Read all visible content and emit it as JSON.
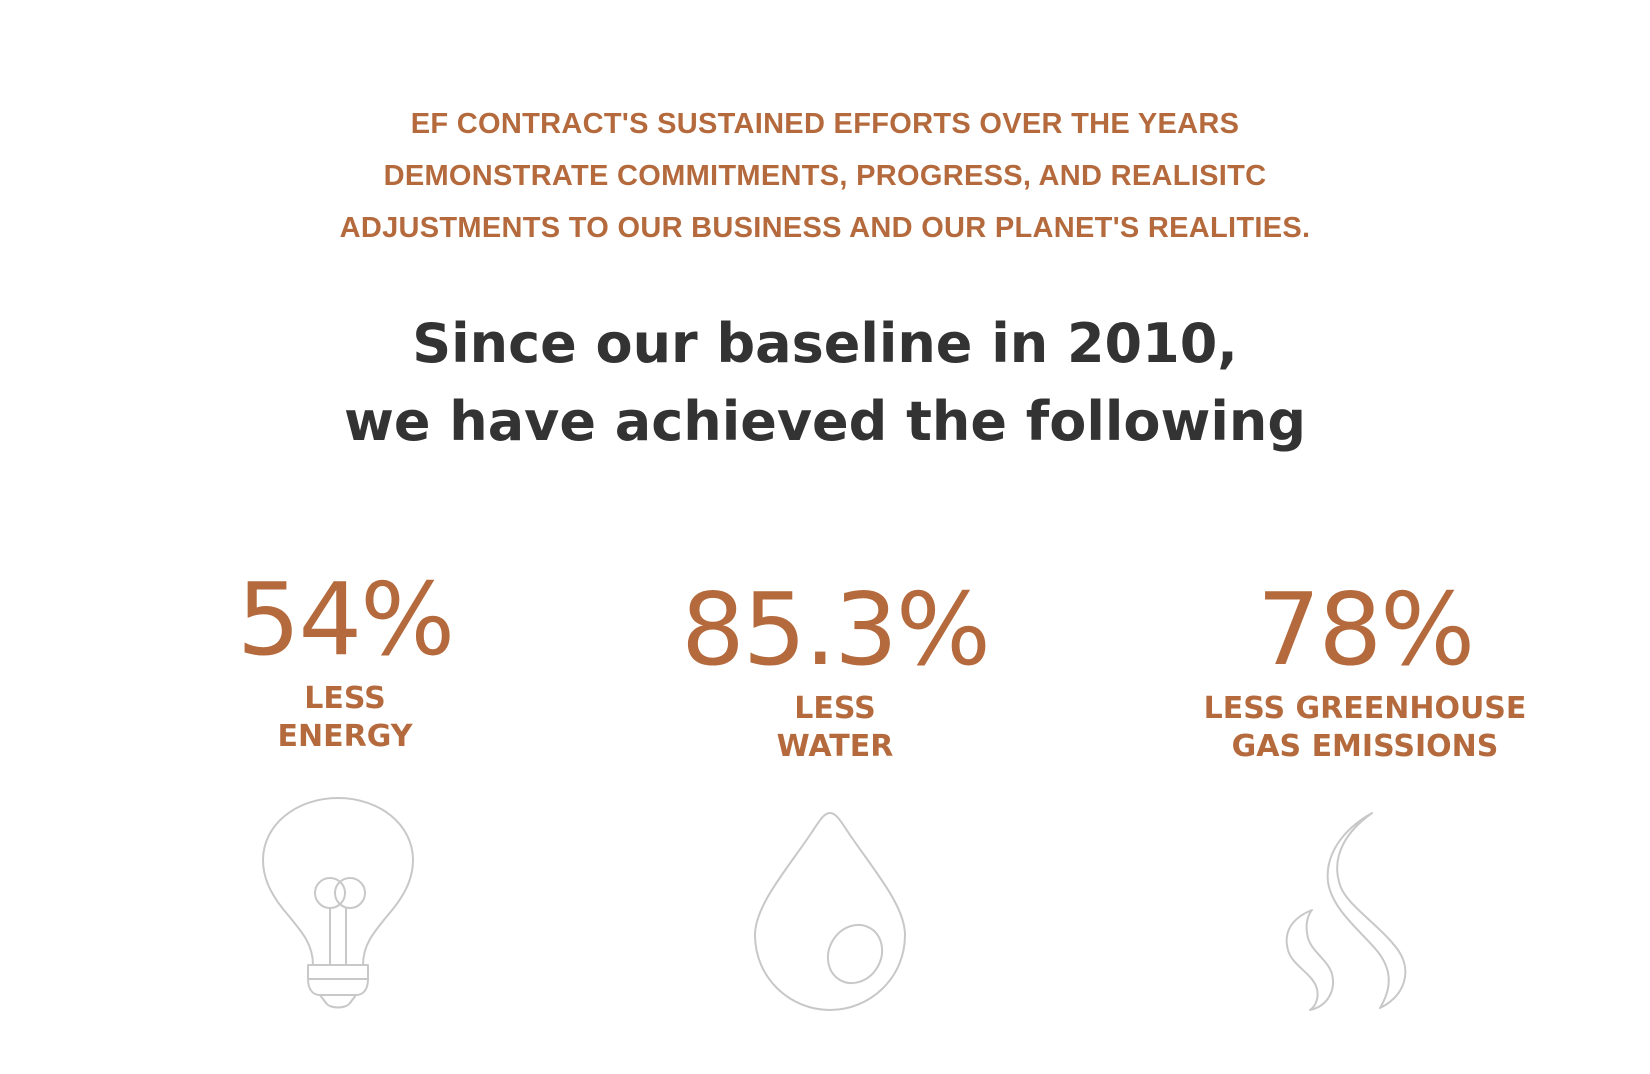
{
  "intro": {
    "lines": [
      "EF CONTRACT'S SUSTAINED EFFORTS OVER THE YEARS",
      "DEMONSTRATE COMMITMENTS, PROGRESS, AND REALISITC",
      "ADJUSTMENTS TO OUR BUSINESS AND OUR PLANET'S REALITIES."
    ]
  },
  "headline": {
    "line1": "Since our baseline in 2010,",
    "line2": "we have achieved the following"
  },
  "stats": [
    {
      "value": "54%",
      "label_lines": [
        "LESS",
        "ENERGY"
      ],
      "icon": "lightbulb-icon"
    },
    {
      "value": "85.3%",
      "label_lines": [
        "LESS",
        "WATER"
      ],
      "icon": "water-drop-icon"
    },
    {
      "value": "78%",
      "label_lines": [
        "LESS GREENHOUSE",
        "GAS EMISSIONS"
      ],
      "icon": "smoke-flame-icon"
    }
  ],
  "colors": {
    "accent": "#b46a3c",
    "headline": "#333333",
    "icon_stroke": "#c8c8c8",
    "background": "#ffffff"
  }
}
